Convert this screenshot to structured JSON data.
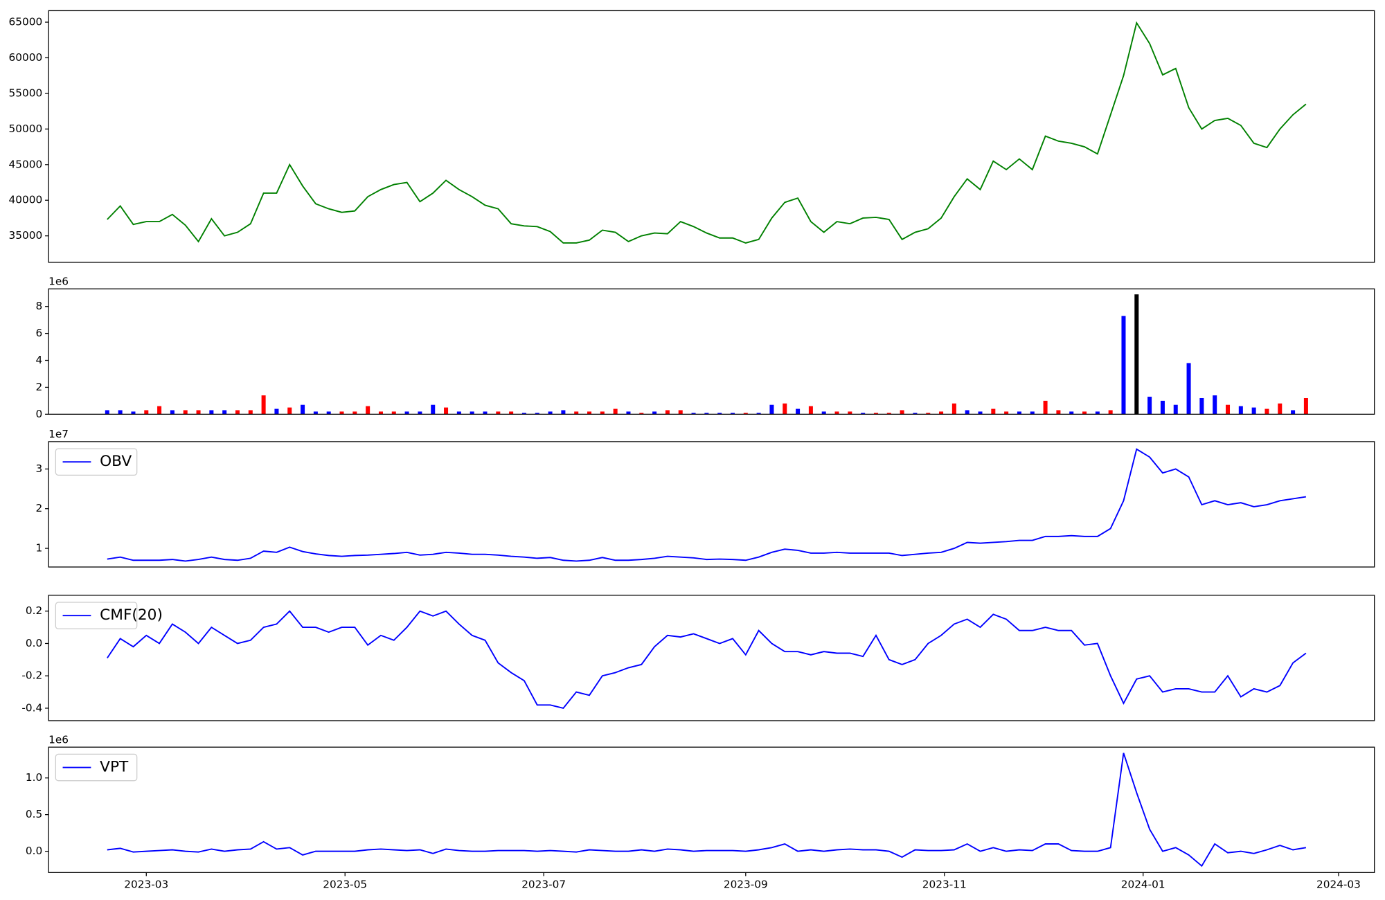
{
  "chart_data": [
    {
      "type": "line",
      "x": [
        47,
        51,
        55,
        59,
        63,
        67,
        71,
        75,
        79,
        83,
        87,
        91,
        95,
        99,
        103,
        107,
        111,
        115,
        119,
        123,
        127,
        131,
        135,
        139,
        143,
        147,
        151,
        155,
        159,
        163,
        167,
        171,
        175,
        179,
        183,
        187,
        191,
        195,
        199,
        203,
        207,
        211,
        215,
        219,
        223,
        227,
        231,
        235,
        239,
        243,
        247,
        251,
        255,
        259,
        263,
        267,
        271,
        275,
        279,
        283,
        287,
        291,
        295,
        299,
        303,
        307,
        311,
        315,
        319,
        323,
        327,
        331,
        335,
        339,
        343,
        347,
        351,
        355,
        359,
        363,
        367,
        371,
        375,
        379,
        383,
        387,
        391,
        395,
        399,
        403,
        407,
        411,
        415
      ],
      "series": [
        {
          "color": "#008000",
          "values": [
            37300,
            39200,
            36600,
            37000,
            37000,
            38000,
            36500,
            34200,
            37400,
            35000,
            35500,
            36700,
            41000,
            41000,
            45000,
            42000,
            39500,
            38800,
            38300,
            38500,
            40500,
            41500,
            42200,
            42500,
            39800,
            41000,
            42800,
            41500,
            40500,
            39300,
            38800,
            36700,
            36400,
            36300,
            35600,
            34000,
            34000,
            34400,
            35800,
            35500,
            34200,
            35000,
            35400,
            35300,
            37000,
            36300,
            35400,
            34700,
            34700,
            34000,
            34500,
            37500,
            39700,
            40300,
            37000,
            35500,
            37000,
            36700,
            37500,
            37600,
            37300,
            34500,
            35500,
            36000,
            37500,
            40500,
            43000,
            41500,
            45500,
            44300,
            45800,
            44300,
            49000,
            48300,
            48000,
            47500,
            46500,
            52000,
            57500,
            64900,
            62000,
            57600,
            58500,
            53000,
            50000,
            51200,
            51500,
            50500,
            48000,
            47400,
            50000,
            52000,
            53500
          ]
        }
      ],
      "xlim": [
        29,
        436
      ],
      "ylim": [
        31280,
        66612
      ],
      "yticks": [
        35000,
        40000,
        45000,
        50000,
        55000,
        60000,
        65000
      ]
    },
    {
      "type": "bar",
      "x": [
        47,
        51,
        55,
        59,
        63,
        67,
        71,
        75,
        79,
        83,
        87,
        91,
        95,
        99,
        103,
        107,
        111,
        115,
        119,
        123,
        127,
        131,
        135,
        139,
        143,
        147,
        151,
        155,
        159,
        163,
        167,
        171,
        175,
        179,
        183,
        187,
        191,
        195,
        199,
        203,
        207,
        211,
        215,
        219,
        223,
        227,
        231,
        235,
        239,
        243,
        247,
        251,
        255,
        259,
        263,
        267,
        271,
        275,
        279,
        283,
        287,
        291,
        295,
        299,
        303,
        307,
        311,
        315,
        319,
        323,
        327,
        331,
        335,
        339,
        343,
        347,
        351,
        355,
        359,
        363,
        367,
        371,
        375,
        379,
        383,
        387,
        391,
        395,
        399,
        403,
        407,
        411,
        415
      ],
      "values": [
        0.3,
        0.3,
        0.2,
        0.3,
        0.6,
        0.3,
        0.3,
        0.3,
        0.3,
        0.3,
        0.3,
        0.3,
        1.4,
        0.4,
        0.5,
        0.7,
        0.2,
        0.2,
        0.2,
        0.2,
        0.6,
        0.2,
        0.2,
        0.2,
        0.2,
        0.7,
        0.5,
        0.2,
        0.2,
        0.2,
        0.2,
        0.2,
        0.1,
        0.1,
        0.2,
        0.3,
        0.2,
        0.2,
        0.2,
        0.4,
        0.2,
        0.1,
        0.2,
        0.3,
        0.3,
        0.1,
        0.1,
        0.1,
        0.1,
        0.1,
        0.1,
        0.7,
        0.8,
        0.4,
        0.6,
        0.2,
        0.2,
        0.2,
        0.1,
        0.1,
        0.1,
        0.3,
        0.1,
        0.1,
        0.2,
        0.8,
        0.3,
        0.2,
        0.4,
        0.2,
        0.2,
        0.2,
        1.0,
        0.3,
        0.2,
        0.2,
        0.2,
        0.3,
        7.3,
        8.9,
        1.3,
        1.0,
        0.7,
        3.8,
        1.2,
        1.4,
        0.7,
        0.6,
        0.5,
        0.4,
        0.8,
        0.3,
        1.2
      ],
      "colors": [
        "blue",
        "blue",
        "blue",
        "red",
        "red",
        "blue",
        "red",
        "red",
        "blue",
        "blue",
        "red",
        "red",
        "red",
        "blue",
        "red",
        "blue",
        "blue",
        "blue",
        "red",
        "red",
        "red",
        "red",
        "red",
        "blue",
        "blue",
        "blue",
        "red",
        "blue",
        "blue",
        "blue",
        "red",
        "red",
        "blue",
        "blue",
        "blue",
        "blue",
        "red",
        "red",
        "red",
        "red",
        "blue",
        "red",
        "blue",
        "red",
        "red",
        "blue",
        "blue",
        "blue",
        "blue",
        "red",
        "blue",
        "blue",
        "red",
        "blue",
        "red",
        "blue",
        "red",
        "red",
        "blue",
        "red",
        "red",
        "red",
        "blue",
        "red",
        "red",
        "red",
        "blue",
        "blue",
        "red",
        "red",
        "blue",
        "blue",
        "red",
        "red",
        "blue",
        "red",
        "blue",
        "red",
        "blue",
        "black",
        "blue",
        "blue",
        "blue",
        "blue",
        "blue",
        "blue",
        "red",
        "blue",
        "blue",
        "red",
        "red",
        "blue",
        "red"
      ],
      "y_offset_label": "1e6",
      "xlim": [
        29,
        436
      ],
      "ylim": [
        0,
        9.31
      ],
      "yticks": [
        0,
        2,
        4,
        6,
        8
      ]
    },
    {
      "type": "line",
      "x": [
        47,
        51,
        55,
        59,
        63,
        67,
        71,
        75,
        79,
        83,
        87,
        91,
        95,
        99,
        103,
        107,
        111,
        115,
        119,
        123,
        127,
        131,
        135,
        139,
        143,
        147,
        151,
        155,
        159,
        163,
        167,
        171,
        175,
        179,
        183,
        187,
        191,
        195,
        199,
        203,
        207,
        211,
        215,
        219,
        223,
        227,
        231,
        235,
        239,
        243,
        247,
        251,
        255,
        259,
        263,
        267,
        271,
        275,
        279,
        283,
        287,
        291,
        295,
        299,
        303,
        307,
        311,
        315,
        319,
        323,
        327,
        331,
        335,
        339,
        343,
        347,
        351,
        355,
        359,
        363,
        367,
        371,
        375,
        379,
        383,
        387,
        391,
        395,
        399,
        403,
        407,
        411,
        415
      ],
      "series": [
        {
          "name": "OBV",
          "color": "#0000ff",
          "values": [
            0.73,
            0.78,
            0.7,
            0.7,
            0.7,
            0.72,
            0.68,
            0.72,
            0.78,
            0.72,
            0.7,
            0.75,
            0.93,
            0.9,
            1.03,
            0.92,
            0.86,
            0.82,
            0.8,
            0.82,
            0.83,
            0.85,
            0.87,
            0.9,
            0.83,
            0.85,
            0.9,
            0.88,
            0.85,
            0.85,
            0.83,
            0.8,
            0.78,
            0.75,
            0.77,
            0.7,
            0.68,
            0.7,
            0.77,
            0.7,
            0.7,
            0.72,
            0.75,
            0.8,
            0.78,
            0.76,
            0.72,
            0.73,
            0.72,
            0.7,
            0.78,
            0.9,
            0.98,
            0.95,
            0.88,
            0.88,
            0.9,
            0.88,
            0.88,
            0.88,
            0.88,
            0.82,
            0.85,
            0.88,
            0.9,
            1.0,
            1.15,
            1.13,
            1.15,
            1.17,
            1.2,
            1.2,
            1.3,
            1.3,
            1.32,
            1.3,
            1.3,
            1.5,
            2.2,
            3.5,
            3.3,
            2.9,
            3.0,
            2.8,
            2.1,
            2.2,
            2.1,
            2.15,
            2.05,
            2.1,
            2.2,
            2.25,
            2.3
          ]
        }
      ],
      "y_offset_label": "1e7",
      "legend": "upper left",
      "xlim": [
        29,
        436
      ],
      "ylim": [
        0.53,
        3.69
      ],
      "yticks": [
        1,
        2,
        3
      ]
    },
    {
      "type": "line",
      "x": [
        47,
        51,
        55,
        59,
        63,
        67,
        71,
        75,
        79,
        83,
        87,
        91,
        95,
        99,
        103,
        107,
        111,
        115,
        119,
        123,
        127,
        131,
        135,
        139,
        143,
        147,
        151,
        155,
        159,
        163,
        167,
        171,
        175,
        179,
        183,
        187,
        191,
        195,
        199,
        203,
        207,
        211,
        215,
        219,
        223,
        227,
        231,
        235,
        239,
        243,
        247,
        251,
        255,
        259,
        263,
        267,
        271,
        275,
        279,
        283,
        287,
        291,
        295,
        299,
        303,
        307,
        311,
        315,
        319,
        323,
        327,
        331,
        335,
        339,
        343,
        347,
        351,
        355,
        359,
        363,
        367,
        371,
        375,
        379,
        383,
        387,
        391,
        395,
        399,
        403,
        407,
        411,
        415
      ],
      "series": [
        {
          "name": "CMF(20)",
          "color": "#0000ff",
          "values": [
            -0.09,
            0.03,
            -0.02,
            0.05,
            0.0,
            0.12,
            0.07,
            0.0,
            0.1,
            0.05,
            0.0,
            0.02,
            0.1,
            0.12,
            0.2,
            0.1,
            0.1,
            0.07,
            0.1,
            0.1,
            -0.01,
            0.05,
            0.02,
            0.1,
            0.2,
            0.17,
            0.2,
            0.12,
            0.05,
            0.02,
            -0.12,
            -0.18,
            -0.23,
            -0.38,
            -0.38,
            -0.4,
            -0.3,
            -0.32,
            -0.2,
            -0.18,
            -0.15,
            -0.13,
            -0.02,
            0.05,
            0.04,
            0.06,
            0.03,
            0.0,
            0.03,
            -0.07,
            0.08,
            0.0,
            -0.05,
            -0.05,
            -0.07,
            -0.05,
            -0.06,
            -0.06,
            -0.08,
            0.05,
            -0.1,
            -0.13,
            -0.1,
            0.0,
            0.05,
            0.12,
            0.15,
            0.1,
            0.18,
            0.15,
            0.08,
            0.08,
            0.1,
            0.08,
            0.08,
            -0.01,
            0.0,
            -0.2,
            -0.37,
            -0.22,
            -0.2,
            -0.3,
            -0.28,
            -0.28,
            -0.3,
            -0.3,
            -0.2,
            -0.33,
            -0.28,
            -0.3,
            -0.26,
            -0.12,
            -0.06
          ]
        }
      ],
      "legend": "upper left",
      "xlim": [
        29,
        436
      ],
      "ylim": [
        -0.477,
        0.298
      ],
      "yticks": [
        -0.4,
        -0.2,
        {
          "value": 0,
          "label": "0.0"
        },
        0.2
      ]
    },
    {
      "type": "line",
      "x": [
        47,
        51,
        55,
        59,
        63,
        67,
        71,
        75,
        79,
        83,
        87,
        91,
        95,
        99,
        103,
        107,
        111,
        115,
        119,
        123,
        127,
        131,
        135,
        139,
        143,
        147,
        151,
        155,
        159,
        163,
        167,
        171,
        175,
        179,
        183,
        187,
        191,
        195,
        199,
        203,
        207,
        211,
        215,
        219,
        223,
        227,
        231,
        235,
        239,
        243,
        247,
        251,
        255,
        259,
        263,
        267,
        271,
        275,
        279,
        283,
        287,
        291,
        295,
        299,
        303,
        307,
        311,
        315,
        319,
        323,
        327,
        331,
        335,
        339,
        343,
        347,
        351,
        355,
        359,
        363,
        367,
        371,
        375,
        379,
        383,
        387,
        391,
        395,
        399,
        403,
        407,
        411,
        415
      ],
      "series": [
        {
          "name": "VPT",
          "color": "#0000ff",
          "values": [
            0.02,
            0.04,
            -0.01,
            0.0,
            0.01,
            0.02,
            0.0,
            -0.01,
            0.03,
            0.0,
            0.02,
            0.03,
            0.13,
            0.03,
            0.05,
            -0.05,
            0.0,
            0.0,
            0.0,
            0.0,
            0.02,
            0.03,
            0.02,
            0.01,
            0.02,
            -0.03,
            0.03,
            0.01,
            0.0,
            0.0,
            0.01,
            0.01,
            0.01,
            0.0,
            0.01,
            0.0,
            -0.01,
            0.02,
            0.01,
            0.0,
            0.0,
            0.02,
            0.0,
            0.03,
            0.02,
            0.0,
            0.01,
            0.01,
            0.01,
            0.0,
            0.02,
            0.05,
            0.1,
            0.0,
            0.02,
            0.0,
            0.02,
            0.03,
            0.02,
            0.02,
            0.0,
            -0.08,
            0.02,
            0.01,
            0.01,
            0.02,
            0.1,
            0.0,
            0.05,
            0.0,
            0.02,
            0.01,
            0.1,
            0.1,
            0.01,
            0.0,
            0.0,
            0.05,
            1.34,
            0.8,
            0.3,
            0.0,
            0.05,
            -0.05,
            -0.2,
            0.1,
            -0.02,
            0.0,
            -0.03,
            0.02,
            0.08,
            0.02,
            0.05
          ]
        }
      ],
      "y_offset_label": "1e6",
      "legend": "upper left",
      "xlim": [
        29,
        436
      ],
      "ylim": [
        -0.29,
        1.42
      ],
      "yticks": [
        {
          "value": 0,
          "label": "0.0"
        },
        0.5,
        {
          "value": 1,
          "label": "1.0"
        }
      ],
      "xticks": [
        {
          "value": 59,
          "label": "2023-03"
        },
        {
          "value": 120,
          "label": "2023-05"
        },
        {
          "value": 181,
          "label": "2023-07"
        },
        {
          "value": 243,
          "label": "2023-09"
        },
        {
          "value": 304,
          "label": "2023-11"
        },
        {
          "value": 365,
          "label": "2024-01"
        },
        {
          "value": 425,
          "label": "2024-03"
        }
      ]
    }
  ]
}
